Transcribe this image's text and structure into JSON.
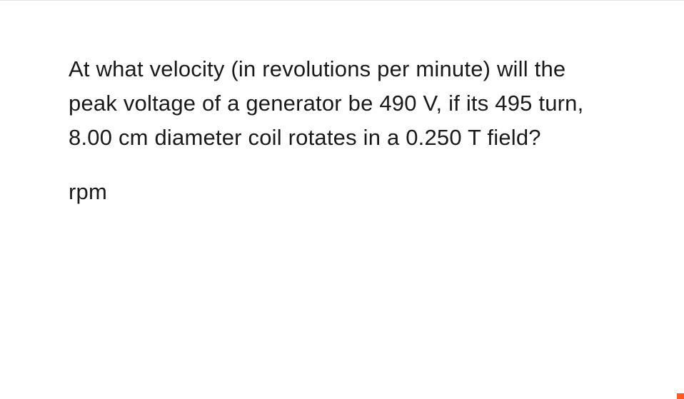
{
  "problem": {
    "question_text": "At what velocity (in revolutions per minute) will the peak voltage of a generator be 490 V, if its 495 turn, 8.00 cm diameter coil rotates in a 0.250 T field?",
    "unit_label": "rpm",
    "text_color": "#1a1a1a",
    "font_size_pt": 23,
    "background_color": "#ffffff",
    "border_top_color": "#e5e5e5"
  },
  "accent": {
    "corner_color": "#ff5a1f"
  }
}
